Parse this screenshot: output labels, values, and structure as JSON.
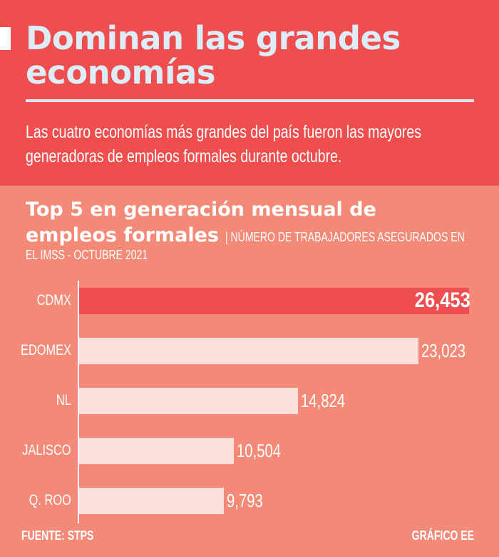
{
  "header": {
    "title_line1": "Dominan las grandes",
    "title_line2": "economías",
    "subtitle_line1": "Las cuatro economías más grandes del país fueron las mayores",
    "subtitle_line2": "generadoras de empleos formales durante octubre."
  },
  "chart_data": {
    "type": "bar",
    "orientation": "horizontal",
    "title_line1": "Top 5 en generación mensual de",
    "title_line2": "empleos formales",
    "subtitle_part1": "| NÚMERO DE TRABAJADORES ASEGURADOS EN",
    "subtitle_part2": "EL IMSS - OCTUBRE 2021",
    "categories": [
      "CDMX",
      "EDOMEX",
      "NL",
      "JALISCO",
      "Q. ROO"
    ],
    "values": [
      26453,
      23023,
      14824,
      10504,
      9793
    ],
    "value_labels": [
      "26,453",
      "23,023",
      "14,824",
      "10,504",
      "9,793"
    ],
    "highlight_index": 0,
    "colors": {
      "highlight": "#ef4e4f",
      "default": "#fcdedb"
    },
    "xlim": [
      0,
      26453
    ],
    "grid": false
  },
  "footer": {
    "source": "FUENTE: STPS",
    "credit": "GRÁFICO EE"
  }
}
